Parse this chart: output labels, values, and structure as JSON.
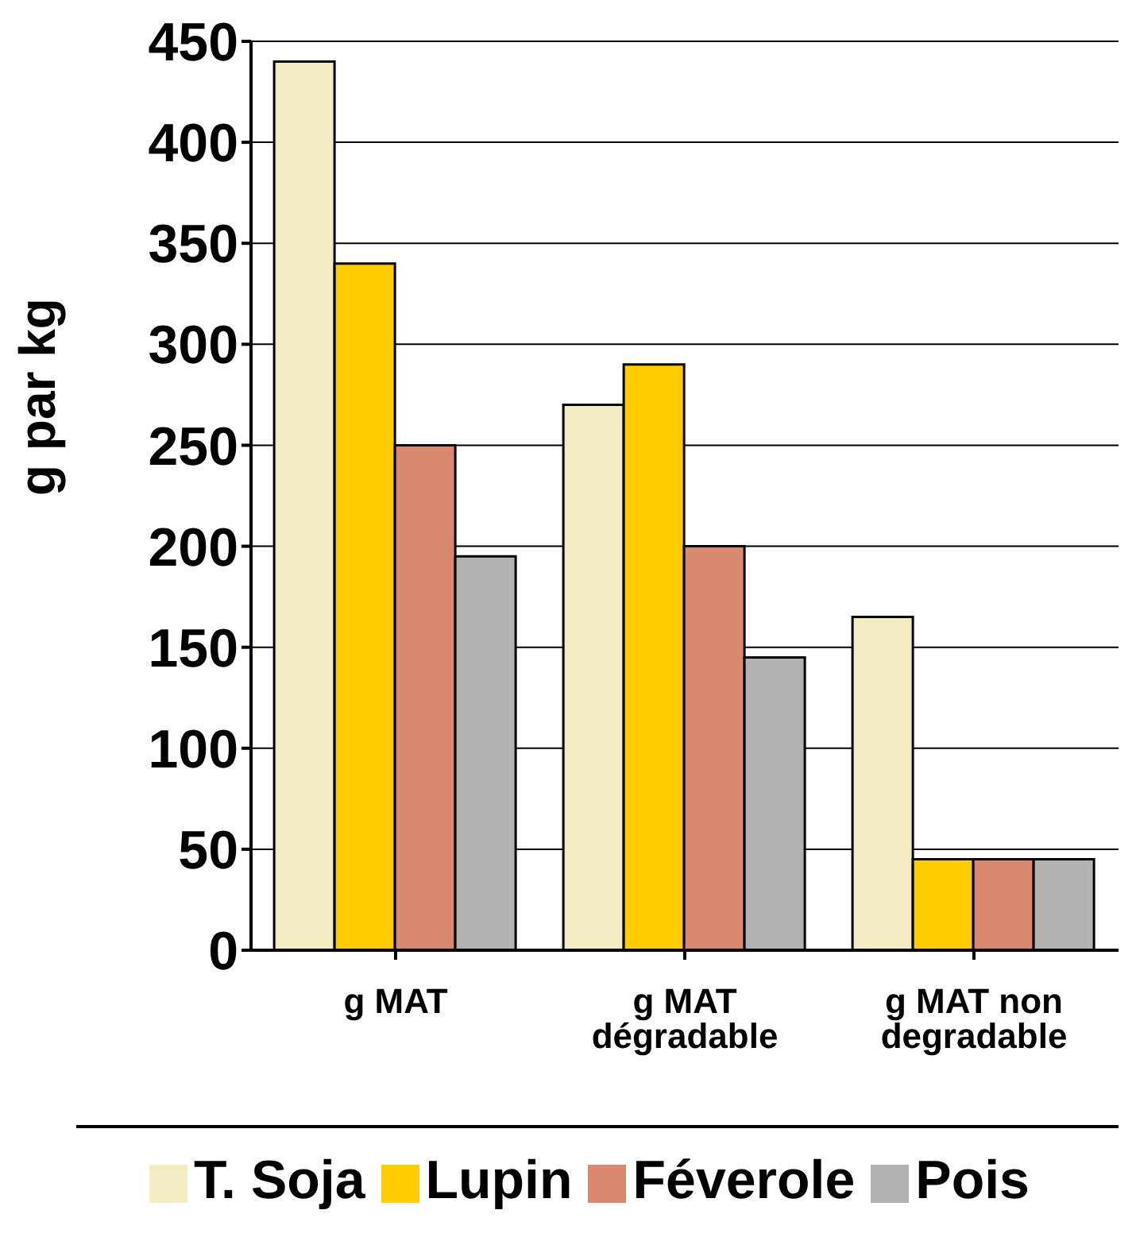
{
  "chart_data": {
    "type": "bar",
    "ylabel": "g par kg",
    "categories": [
      "g MAT",
      "g MAT dégradable",
      "g MAT non degradable"
    ],
    "series": [
      {
        "name": "T. Soja",
        "color": "#f5ebc2",
        "values": [
          440,
          270,
          165
        ]
      },
      {
        "name": "Lupin",
        "color": "#ffcc00",
        "values": [
          340,
          290,
          45
        ]
      },
      {
        "name": "Féverole",
        "color": "#d9896f",
        "values": [
          250,
          200,
          45
        ]
      },
      {
        "name": "Pois",
        "color": "#b2b2b2",
        "values": [
          195,
          145,
          45
        ]
      }
    ],
    "ylim": [
      0,
      450
    ],
    "yticks": [
      0,
      50,
      100,
      150,
      200,
      250,
      300,
      350,
      400,
      450
    ],
    "grid": "y",
    "legend": "bottom"
  }
}
